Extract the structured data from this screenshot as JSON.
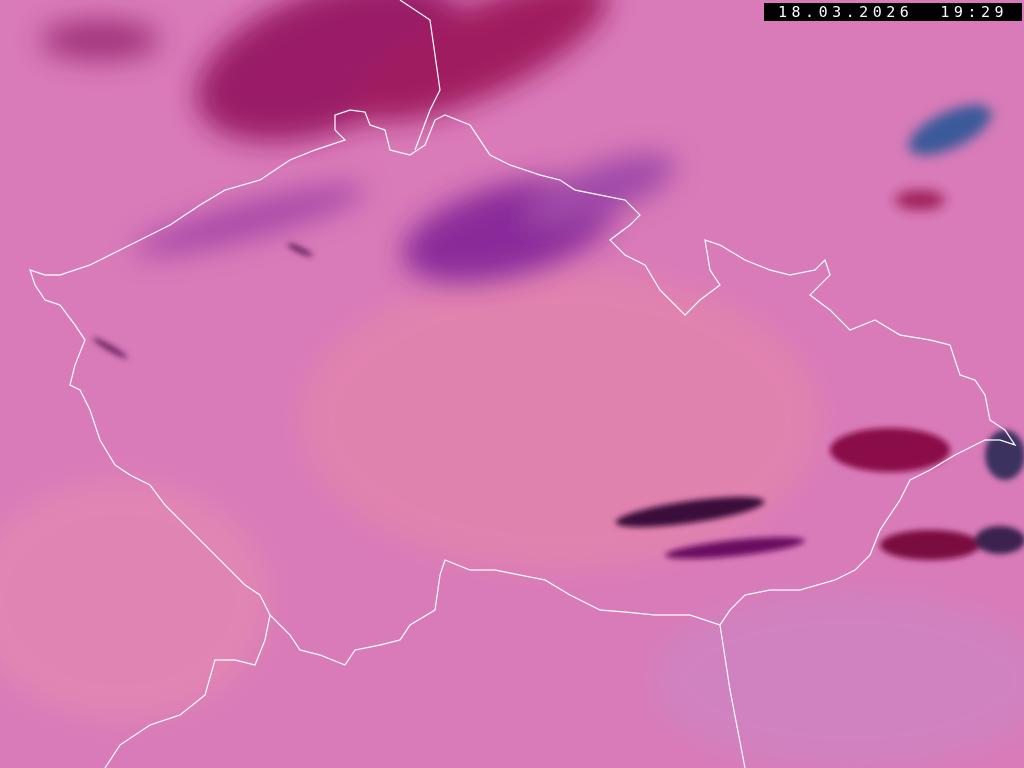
{
  "timestamp": "18.03.2026  19:29",
  "colors": {
    "background": "#d97bb8",
    "cloud_dark": "#8a0a5a",
    "cloud_purple": "#8a2a9a",
    "cloud_blue": "#2a5a9a",
    "border": "#ffffff"
  }
}
